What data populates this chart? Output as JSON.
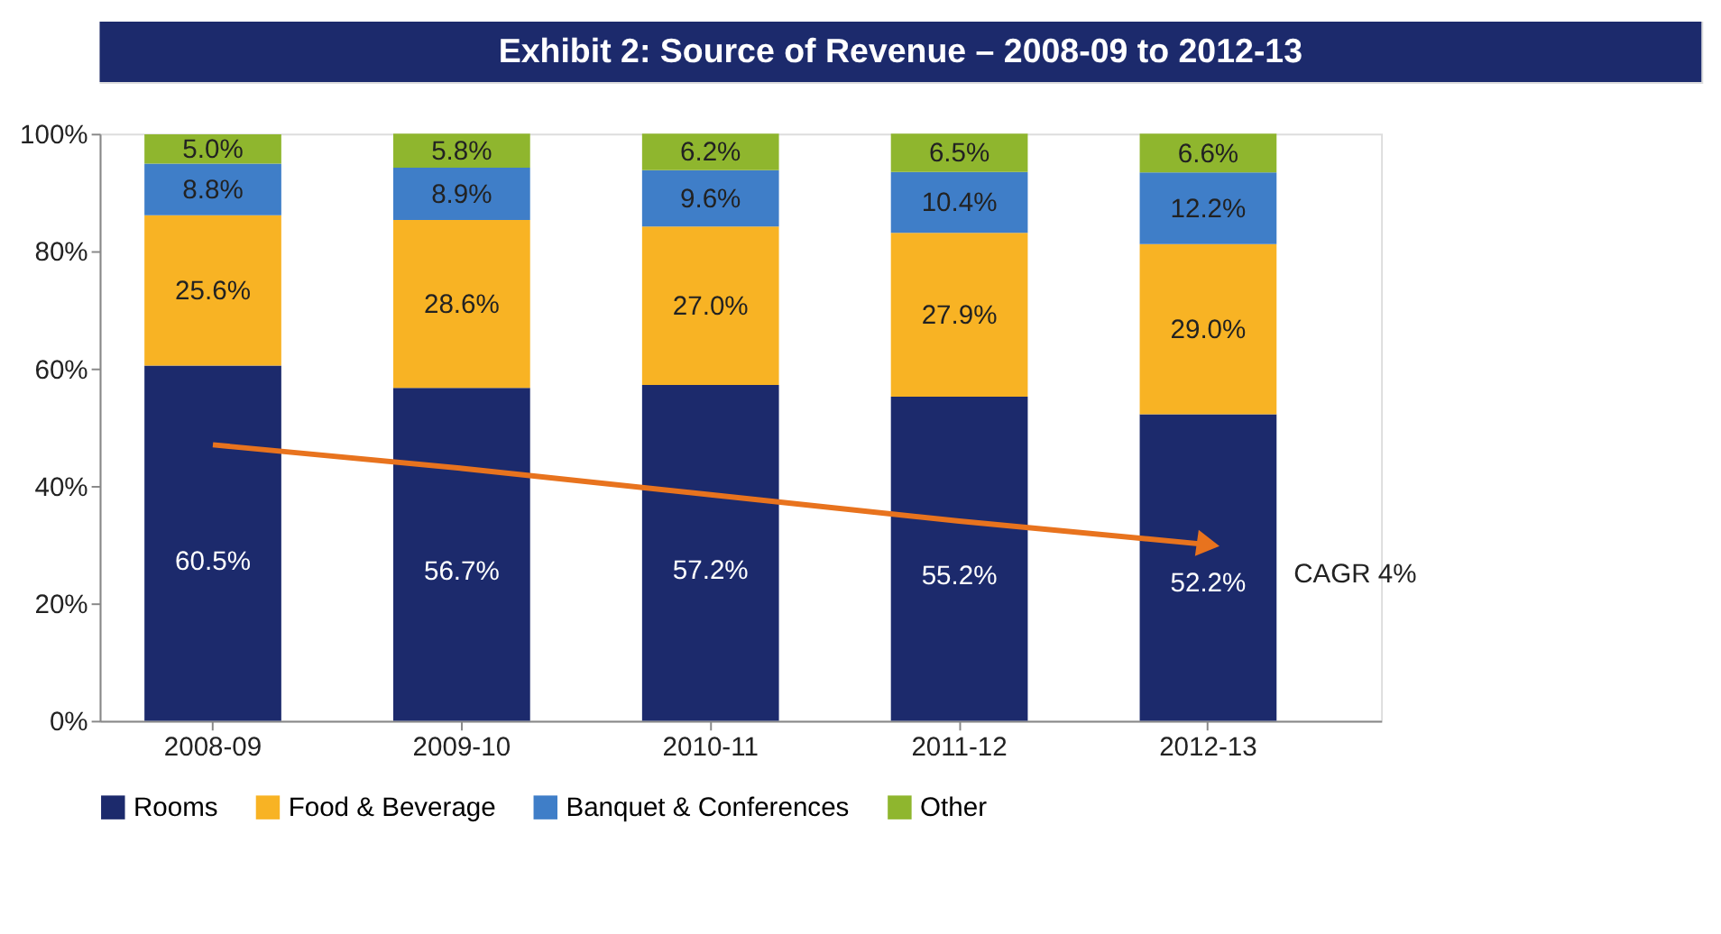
{
  "chart_data": {
    "type": "bar",
    "stacked": true,
    "title": "Exhibit 2: Source of Revenue – 2008-09 to 2012-13",
    "categories": [
      "2008-09",
      "2009-10",
      "2010-11",
      "2011-12",
      "2012-13"
    ],
    "ylim": [
      0,
      100
    ],
    "yticks": [
      {
        "value": 0,
        "label": "0%"
      },
      {
        "value": 20,
        "label": "20%"
      },
      {
        "value": 40,
        "label": "40%"
      },
      {
        "value": 60,
        "label": "60%"
      },
      {
        "value": 80,
        "label": "80%"
      },
      {
        "value": 100,
        "label": "100%"
      }
    ],
    "grid": false,
    "legend": "bottom",
    "series": [
      {
        "name": "Rooms",
        "color": "#1c2a6c",
        "values": [
          60.5,
          56.7,
          57.2,
          55.2,
          52.2
        ],
        "value_labels": [
          "60.5%",
          "56.7%",
          "57.2%",
          "55.2%",
          "52.2%"
        ]
      },
      {
        "name": "Food & Beverage",
        "color": "#f8b324",
        "values": [
          25.6,
          28.6,
          27.0,
          27.9,
          29.0
        ],
        "value_labels": [
          "25.6%",
          "28.6%",
          "27.0%",
          "27.9%",
          "29.0%"
        ]
      },
      {
        "name": "Banquet & Conferences",
        "color": "#3f7ec8",
        "values": [
          8.8,
          8.9,
          9.6,
          10.4,
          12.2
        ],
        "value_labels": [
          "8.8%",
          "8.9%",
          "9.6%",
          "10.4%",
          "12.2%"
        ]
      },
      {
        "name": "Other",
        "color": "#8fb62e",
        "values": [
          5.0,
          5.8,
          6.2,
          6.5,
          6.6
        ],
        "value_labels": [
          "5.0%",
          "5.8%",
          "6.2%",
          "6.5%",
          "6.6%"
        ]
      },
      {
        "type": "line",
        "color": "#e8731e",
        "values": [
          47,
          43,
          38.5,
          34,
          30
        ]
      }
    ],
    "annotations": [
      "CAGR 4%"
    ]
  }
}
